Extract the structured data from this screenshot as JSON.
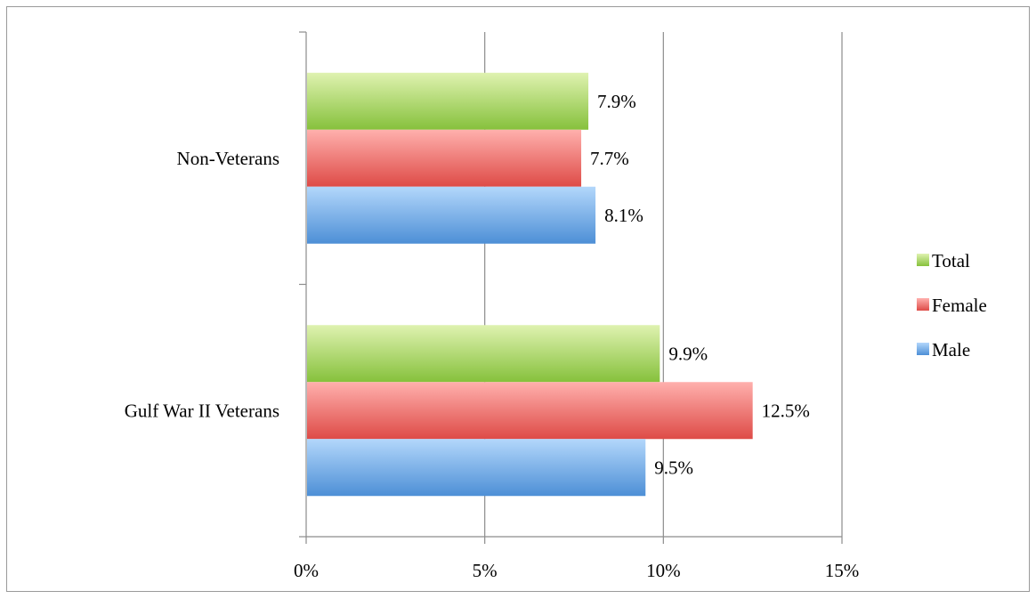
{
  "chart_data": {
    "type": "bar",
    "orientation": "horizontal",
    "title": "",
    "xlabel": "",
    "ylabel": "",
    "categories": [
      "Non-Veterans",
      "Gulf War II Veterans"
    ],
    "series": [
      {
        "name": "Total",
        "values": [
          7.9,
          9.9
        ],
        "labels": [
          "7.9%",
          "9.9%"
        ],
        "color": "#8cc63f"
      },
      {
        "name": "Female",
        "values": [
          7.7,
          12.5
        ],
        "labels": [
          "7.7%",
          "12.5%"
        ],
        "color": "#e8504f"
      },
      {
        "name": "Male",
        "values": [
          8.1,
          9.5
        ],
        "labels": [
          "8.1%",
          "9.5%"
        ],
        "color": "#4a90d9"
      }
    ],
    "xlim": [
      0,
      15
    ],
    "xticks": [
      0,
      5,
      10,
      15
    ],
    "xtick_labels": [
      "0%",
      "5%",
      "10%",
      "15%"
    ],
    "grid": "vertical",
    "legend": "right"
  }
}
